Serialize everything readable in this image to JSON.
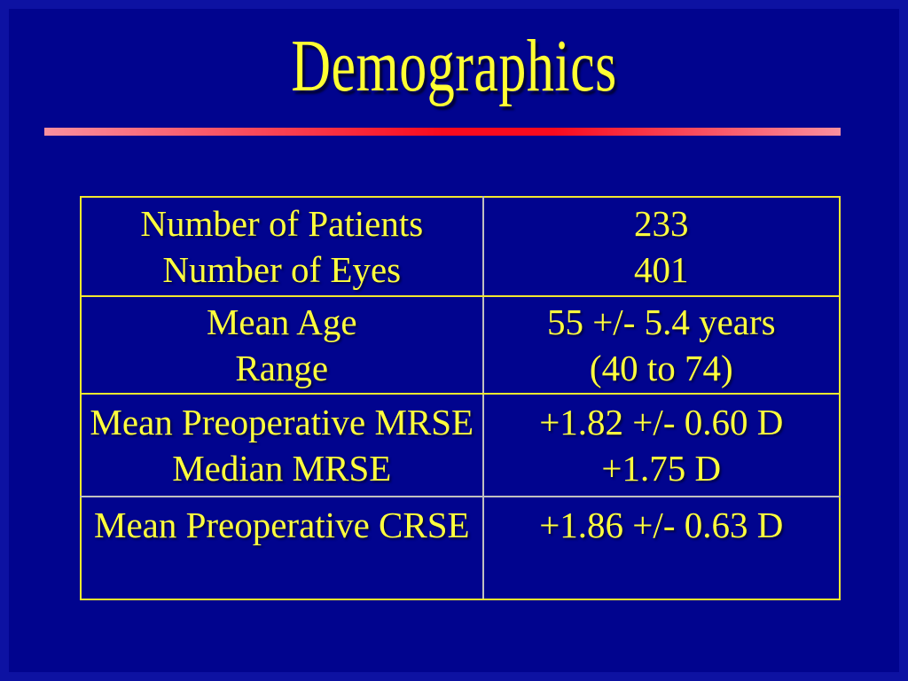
{
  "title": "Demographics",
  "colors": {
    "frame": "#0d12a2",
    "slide_bg": "#01048e",
    "title_color": "#ffff33",
    "table_text": "#ffff3d",
    "table_border": "#f2e92e",
    "divider_gray": "#c0c0c0",
    "rule_pink": "#f9909f",
    "rule_red": "#fa0a1e"
  },
  "table": {
    "rows": [
      {
        "labels": [
          "Number of Patients",
          "Number of Eyes"
        ],
        "values": [
          "233",
          "401"
        ]
      },
      {
        "labels": [
          "Mean Age",
          "Range"
        ],
        "values": [
          "55 +/- 5.4 years",
          "(40 to 74)"
        ]
      },
      {
        "labels": [
          "Mean Preoperative MRSE",
          "Median MRSE"
        ],
        "values": [
          "+1.82 +/- 0.60 D",
          "+1.75 D"
        ]
      },
      {
        "labels": [
          "Mean Preoperative CRSE"
        ],
        "values": [
          "+1.86 +/- 0.63 D"
        ]
      }
    ]
  }
}
